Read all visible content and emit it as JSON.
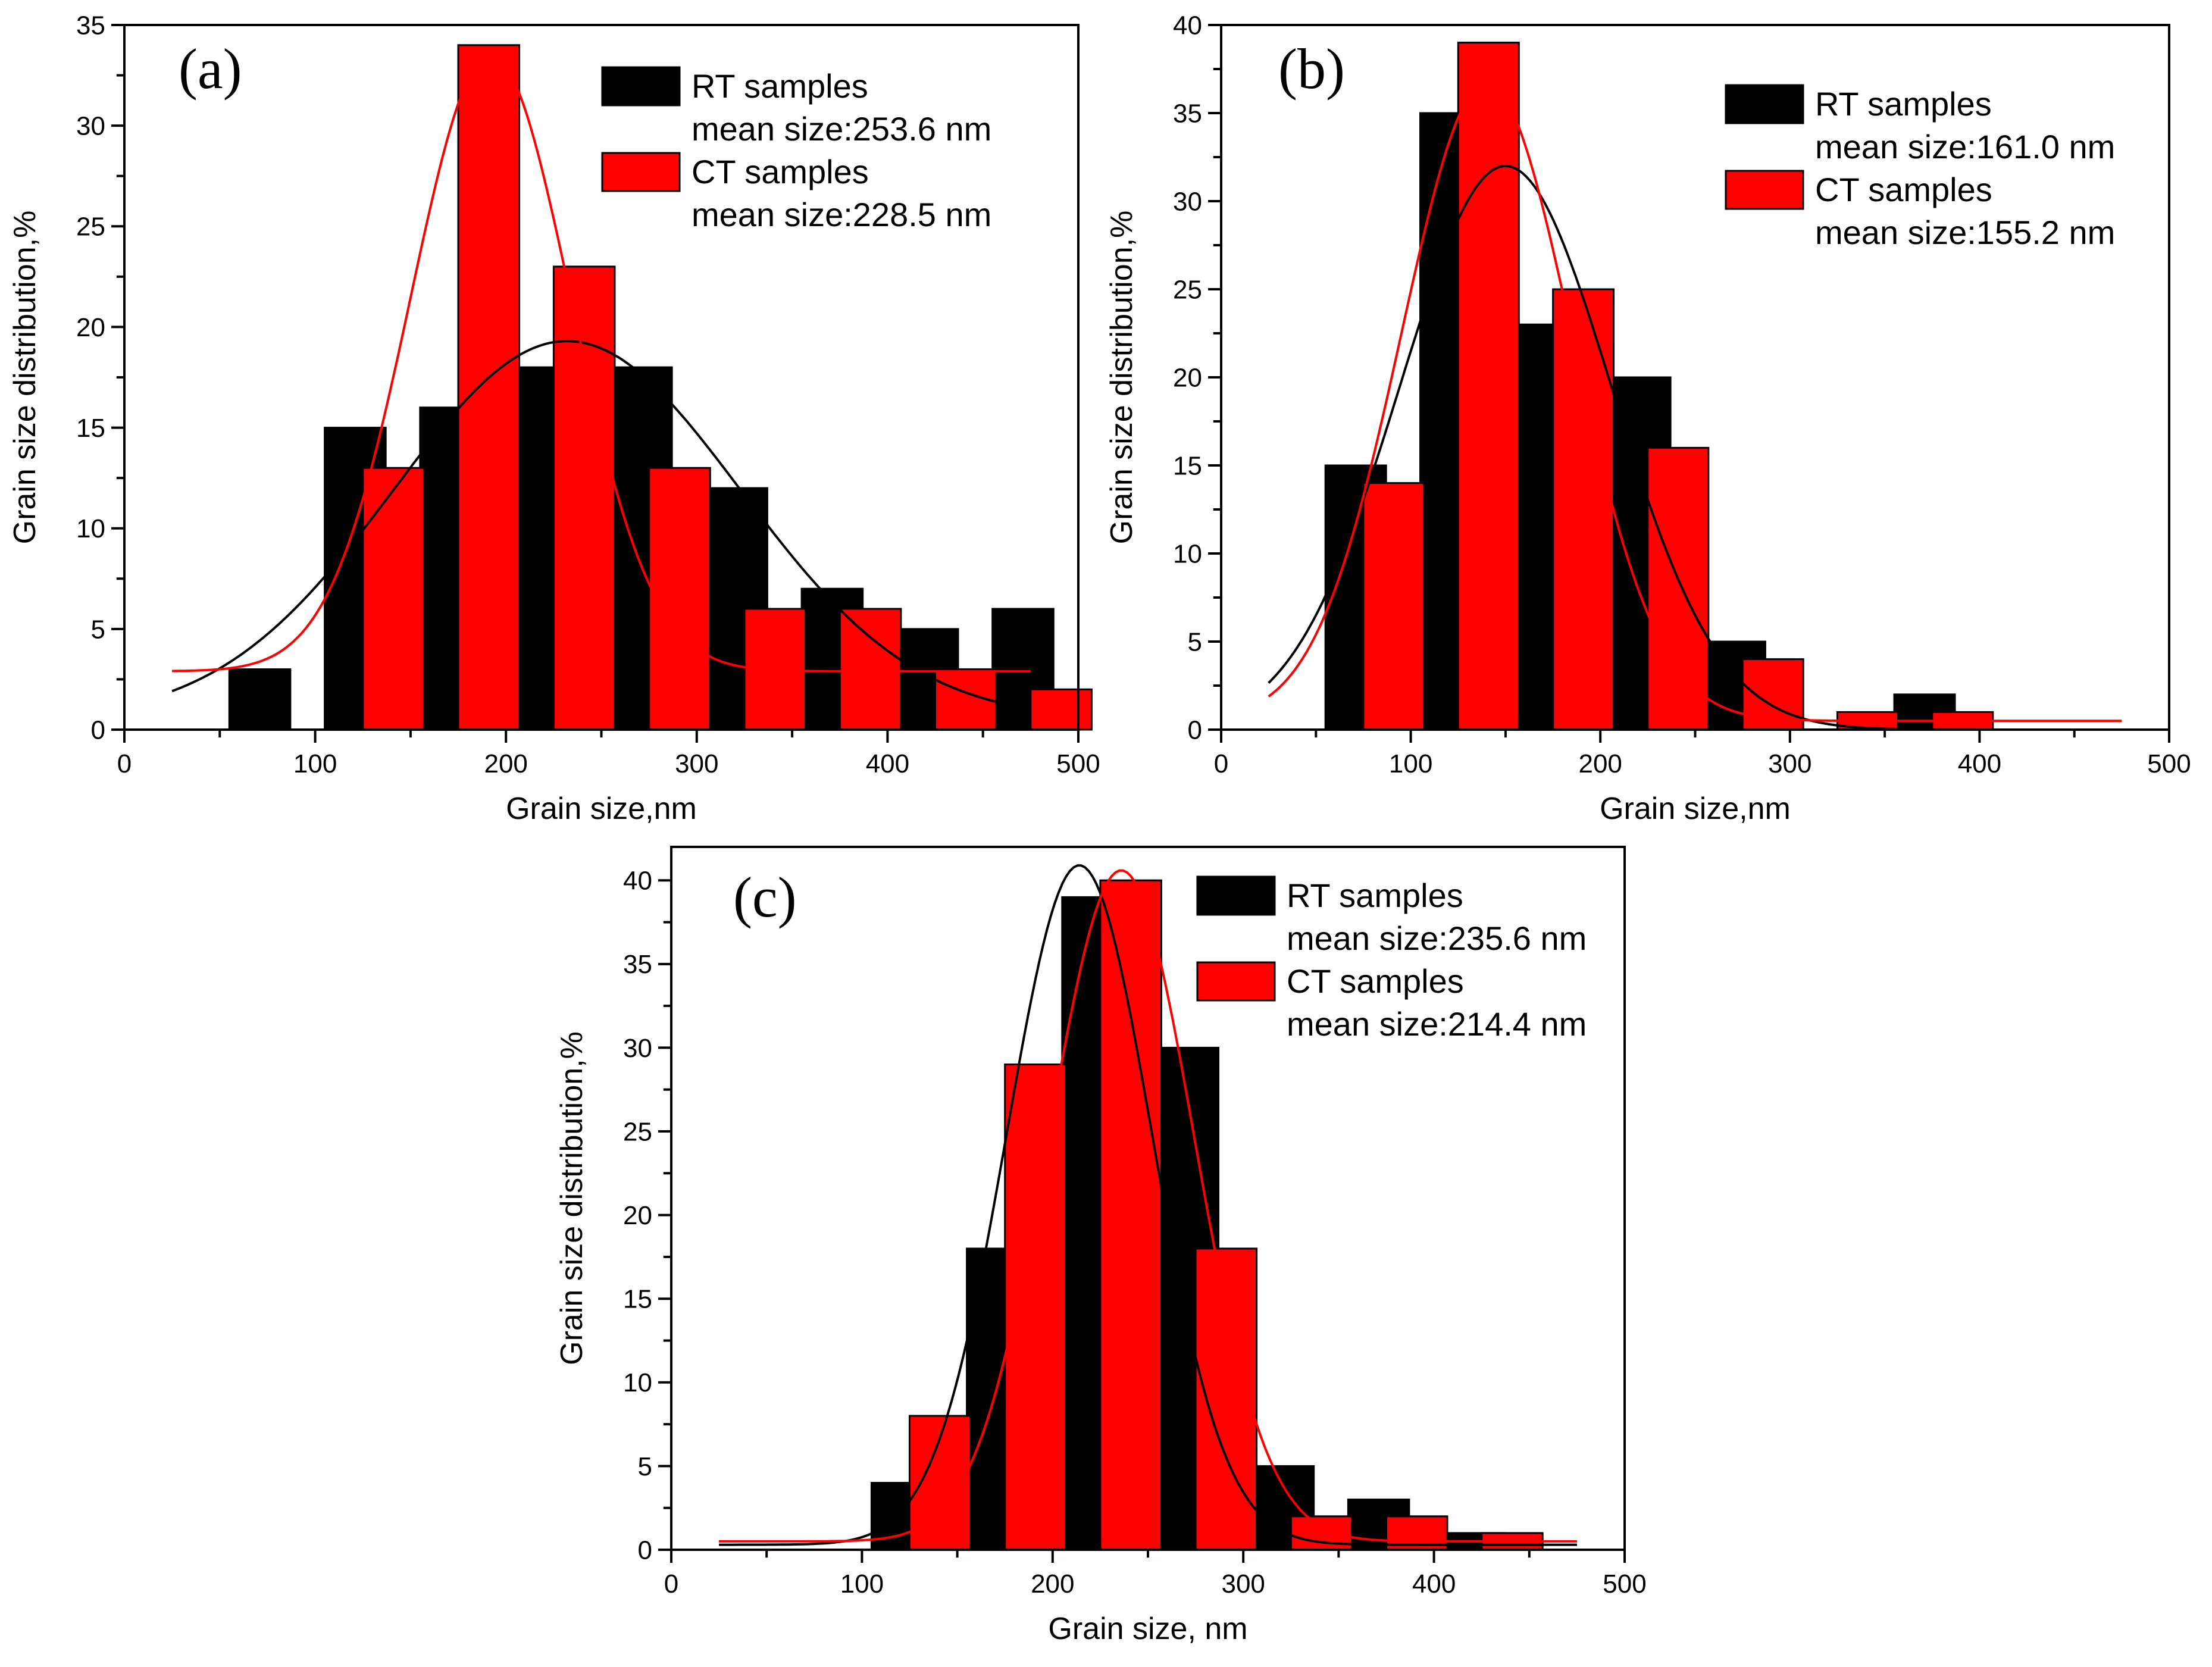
{
  "figure": {
    "colors": {
      "rt": "#000000",
      "ct": "#ff0000",
      "axis": "#000000"
    }
  },
  "chart_data": [
    {
      "type": "bar",
      "panel_label": "(a)",
      "xlabel": "Grain size,nm",
      "ylabel": "Grain size distribution,%",
      "xlim": [
        0,
        500
      ],
      "ylim": [
        0,
        35
      ],
      "xticks": [
        0,
        100,
        200,
        300,
        400,
        500
      ],
      "yticks": [
        0,
        5,
        10,
        15,
        20,
        25,
        30,
        35
      ],
      "series": [
        {
          "name": "RT samples",
          "mean_label": "mean size:253.6 nm",
          "color": "#000000",
          "bins": [
            55,
            105,
            155,
            205,
            255,
            305,
            355,
            405,
            455
          ],
          "values": [
            3,
            15,
            16,
            18,
            18,
            12,
            7,
            5,
            6
          ],
          "fit": {
            "y0": 0.5,
            "xc": 232,
            "w": 182,
            "A": 18.8
          }
        },
        {
          "name": "CT samples",
          "mean_label": "mean size:228.5 nm",
          "color": "#ff0000",
          "bins": [
            125,
            175,
            225,
            275,
            325,
            375,
            425,
            475
          ],
          "values": [
            13,
            34,
            23,
            13,
            6,
            6,
            3,
            2
          ],
          "fit": {
            "y0": 2.9,
            "xc": 192,
            "w": 84,
            "A": 30.6
          }
        }
      ]
    },
    {
      "type": "bar",
      "panel_label": "(b)",
      "xlabel": "Grain size,nm",
      "ylabel": "Grain size distribution,%",
      "xlim": [
        0,
        500
      ],
      "ylim": [
        0,
        40
      ],
      "xticks": [
        0,
        100,
        200,
        300,
        400,
        500
      ],
      "yticks": [
        0,
        5,
        10,
        15,
        20,
        25,
        30,
        35,
        40
      ],
      "series": [
        {
          "name": "RT samples",
          "mean_label": "mean size:161.0 nm",
          "color": "#000000",
          "bins": [
            55,
            105,
            155,
            205,
            255,
            305,
            355
          ],
          "values": [
            15,
            35,
            23,
            20,
            5,
            0,
            2
          ],
          "fit": {
            "y0": 0.0,
            "xc": 150,
            "w": 112,
            "A": 32
          }
        },
        {
          "name": "CT samples",
          "mean_label": "mean size:155.2 nm",
          "color": "#ff0000",
          "bins": [
            75,
            125,
            175,
            225,
            275,
            325,
            375
          ],
          "values": [
            14,
            39,
            25,
            16,
            4,
            1,
            1
          ],
          "fit": {
            "y0": 0.5,
            "xc": 140,
            "w": 90,
            "A": 36.2
          }
        }
      ]
    },
    {
      "type": "bar",
      "panel_label": "(c)",
      "xlabel": "Grain size, nm",
      "ylabel": "Grain size distribution,%",
      "xlim": [
        0,
        500
      ],
      "ylim": [
        0,
        42
      ],
      "xticks": [
        0,
        100,
        200,
        300,
        400,
        500
      ],
      "yticks": [
        0,
        5,
        10,
        15,
        20,
        25,
        30,
        35,
        40
      ],
      "series": [
        {
          "name": "RT samples",
          "mean_label": "mean size:235.6 nm",
          "color": "#000000",
          "bins": [
            105,
            155,
            205,
            255,
            305,
            355,
            405
          ],
          "values": [
            4,
            18,
            39,
            30,
            5,
            3,
            1
          ],
          "fit": {
            "y0": 0.3,
            "xc": 214,
            "w": 76,
            "A": 40.6
          }
        },
        {
          "name": "CT samples",
          "mean_label": "mean size:214.4 nm",
          "color": "#ff0000",
          "bins": [
            125,
            175,
            225,
            275,
            325,
            375,
            425
          ],
          "values": [
            8,
            29,
            40,
            18,
            2,
            2,
            1
          ],
          "fit": {
            "y0": 0.5,
            "xc": 236,
            "w": 76,
            "A": 40.1
          }
        }
      ]
    }
  ]
}
